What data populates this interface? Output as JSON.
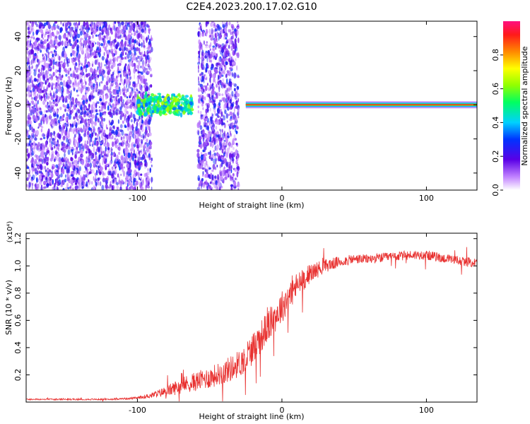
{
  "figure": {
    "title": "C2E4.2023.200.17.02.G10"
  },
  "chart_data": [
    {
      "type": "heatmap",
      "xlabel": "Height of straight line (km)",
      "ylabel": "Frequency (Hz)",
      "xlim": [
        -177,
        135
      ],
      "ylim": [
        -50,
        49
      ],
      "xticks": [
        -100,
        0,
        100
      ],
      "yticks": [
        -40,
        -20,
        0,
        20,
        40
      ],
      "colorbar": {
        "label": "Normalized spectral amplitude",
        "range": [
          0,
          1
        ],
        "ticks": [
          0.0,
          0.2,
          0.4,
          0.6,
          0.8
        ]
      },
      "regions": [
        {
          "x_from": -177,
          "x_to": -90,
          "freq_from": -50,
          "freq_to": 49,
          "amplitude": 0.15,
          "texture": "noise"
        },
        {
          "x_from": -100,
          "x_to": -62,
          "freq_from": -5,
          "freq_to": 5,
          "amplitude": 0.35,
          "texture": "band"
        },
        {
          "x_from": -58,
          "x_to": -30,
          "freq_from": -50,
          "freq_to": 49,
          "amplitude": 0.15,
          "texture": "noise"
        },
        {
          "x_from": -25,
          "x_to": 135,
          "freq_from": -1,
          "freq_to": 1,
          "amplitude": 0.8,
          "texture": "carrier"
        }
      ]
    },
    {
      "type": "line",
      "xlabel": "Height of straight line (km)",
      "ylabel": "SNR (10 * v/v)",
      "multiplier": "(x10⁴)",
      "xlim": [
        -177,
        135
      ],
      "ylim": [
        0,
        1.24
      ],
      "xticks": [
        -100,
        0,
        100
      ],
      "yticks": [
        0.2,
        0.4,
        0.6,
        0.8,
        1.0,
        1.2
      ],
      "color": "#e8302f",
      "x": [
        -177,
        -150,
        -120,
        -100,
        -90,
        -80,
        -70,
        -60,
        -50,
        -40,
        -30,
        -25,
        -20,
        -10,
        0,
        5,
        10,
        15,
        20,
        30,
        40,
        50,
        60,
        70,
        80,
        90,
        100,
        110,
        120,
        135
      ],
      "y": [
        0.02,
        0.02,
        0.02,
        0.03,
        0.05,
        0.08,
        0.12,
        0.15,
        0.18,
        0.22,
        0.28,
        0.32,
        0.4,
        0.55,
        0.7,
        0.78,
        0.85,
        0.9,
        0.95,
        1.0,
        1.03,
        1.05,
        1.05,
        1.06,
        1.07,
        1.08,
        1.08,
        1.06,
        1.04,
        1.02
      ],
      "noise": [
        0.005,
        0.005,
        0.005,
        0.008,
        0.02,
        0.04,
        0.06,
        0.07,
        0.08,
        0.09,
        0.1,
        0.11,
        0.12,
        0.12,
        0.12,
        0.11,
        0.1,
        0.08,
        0.07,
        0.05,
        0.04,
        0.035,
        0.035,
        0.035,
        0.035,
        0.035,
        0.035,
        0.035,
        0.035,
        0.035
      ]
    }
  ]
}
